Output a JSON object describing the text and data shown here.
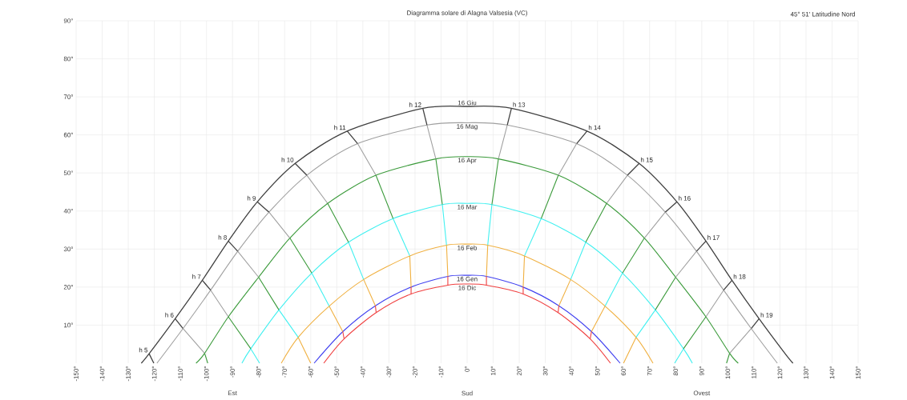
{
  "chart_data": {
    "type": "line",
    "title": "Diagramma solare di Alagna Valsesia (VC)",
    "xlim": [
      -150,
      150
    ],
    "ylim": [
      0,
      90
    ],
    "xticks": [
      {
        "value": -150,
        "label": "-150°"
      },
      {
        "value": -140,
        "label": "-140°"
      },
      {
        "value": -130,
        "label": "-130°"
      },
      {
        "value": -120,
        "label": "-120°"
      },
      {
        "value": -110,
        "label": "-110°"
      },
      {
        "value": -100,
        "label": "-100°"
      },
      {
        "value": -90,
        "label": "-90°"
      },
      {
        "value": -80,
        "label": "-80°"
      },
      {
        "value": -70,
        "label": "-70°"
      },
      {
        "value": -60,
        "label": "-60°"
      },
      {
        "value": -50,
        "label": "-50°"
      },
      {
        "value": -40,
        "label": "-40°"
      },
      {
        "value": -30,
        "label": "-30°"
      },
      {
        "value": -20,
        "label": "-20°"
      },
      {
        "value": -10,
        "label": "-10°"
      },
      {
        "value": 0,
        "label": "0°"
      },
      {
        "value": 10,
        "label": "10°"
      },
      {
        "value": 20,
        "label": "20°"
      },
      {
        "value": 30,
        "label": "30°"
      },
      {
        "value": 40,
        "label": "40°"
      },
      {
        "value": 50,
        "label": "50°"
      },
      {
        "value": 60,
        "label": "60°"
      },
      {
        "value": 70,
        "label": "70°"
      },
      {
        "value": 80,
        "label": "80°"
      },
      {
        "value": 90,
        "label": "90°"
      },
      {
        "value": 100,
        "label": "100°"
      },
      {
        "value": 110,
        "label": "110°"
      },
      {
        "value": 120,
        "label": "120°"
      },
      {
        "value": 130,
        "label": "130°"
      },
      {
        "value": 140,
        "label": "140°"
      },
      {
        "value": 150,
        "label": "150°"
      }
    ],
    "yticks": [
      {
        "value": 10,
        "label": "10°"
      },
      {
        "value": 20,
        "label": "20°"
      },
      {
        "value": 30,
        "label": "30°"
      },
      {
        "value": 40,
        "label": "40°"
      },
      {
        "value": 50,
        "label": "50°"
      },
      {
        "value": 60,
        "label": "60°"
      },
      {
        "value": 70,
        "label": "70°"
      },
      {
        "value": 80,
        "label": "80°"
      },
      {
        "value": 90,
        "label": "90°"
      }
    ],
    "grid": true,
    "marker": "none",
    "series": [
      {
        "name": "16 Giu",
        "color": "#404040",
        "x": [
          -125,
          -122,
          -112,
          -101.6,
          -91.6,
          -80.5,
          -66,
          -46,
          -17,
          0,
          17,
          46,
          66,
          80.5,
          91.6,
          101.6,
          112,
          122,
          125
        ],
        "values": [
          0,
          2.5,
          11.7,
          21.8,
          32.1,
          42.4,
          52.5,
          61,
          67,
          67.5,
          67,
          61,
          52.5,
          42.4,
          32.1,
          21.8,
          11.7,
          2.5,
          0
        ]
      },
      {
        "name": "16 Mag",
        "color": "#a0a0a0",
        "x": [
          -119,
          -109,
          -98.4,
          -88,
          -76,
          -61.5,
          -42,
          -15.4,
          0,
          15.4,
          42,
          61.5,
          76,
          88,
          98.4,
          109,
          119
        ],
        "values": [
          0,
          9.1,
          19.2,
          29.4,
          39.7,
          49.4,
          57.7,
          62.6,
          63.2,
          62.6,
          57.7,
          49.4,
          39.7,
          29.4,
          19.2,
          9.1,
          0
        ]
      },
      {
        "name": "16 Apr",
        "color": "#3a9a3a",
        "x": [
          -104,
          -100.7,
          -91.6,
          -80,
          -68,
          -53.5,
          -35,
          -12,
          0,
          12,
          35,
          53.5,
          68,
          80,
          91.6,
          100.7,
          104
        ],
        "values": [
          0,
          2.6,
          12.2,
          22.6,
          32.9,
          42,
          49.4,
          53.7,
          54.3,
          53.7,
          49.4,
          42,
          32.9,
          22.6,
          12.2,
          2.6,
          0
        ]
      },
      {
        "name": "16 Mar",
        "color": "#40f0f0",
        "x": [
          -86.4,
          -83,
          -72.2,
          -59.6,
          -45.5,
          -28.4,
          -9.5,
          0,
          9.5,
          28.4,
          45.5,
          59.6,
          72.2,
          83,
          86.4
        ],
        "values": [
          0,
          3.8,
          14,
          23.7,
          31.8,
          38,
          41.7,
          42,
          41.7,
          38,
          31.8,
          23.7,
          14,
          3.8,
          0
        ]
      },
      {
        "name": "16 Feb",
        "color": "#f0b040",
        "x": [
          -71.3,
          -64.8,
          -52.9,
          -39.7,
          -22,
          -7.9,
          0,
          7.9,
          22,
          39.7,
          52.9,
          64.8,
          71.3
        ],
        "values": [
          0,
          6.8,
          15,
          22,
          28.2,
          31,
          31.3,
          31,
          28.2,
          22,
          15,
          6.8,
          0
        ]
      },
      {
        "name": "16 Gen",
        "color": "#4040f0",
        "x": [
          -58.7,
          -47.7,
          -35.2,
          -21.5,
          -7.4,
          0,
          7.4,
          21.5,
          35.2,
          47.7,
          58.7
        ],
        "values": [
          0,
          8.3,
          15.1,
          20,
          22.8,
          23.1,
          22.8,
          20,
          15.1,
          8.3,
          0
        ]
      },
      {
        "name": "16 Dic",
        "color": "#f04040",
        "x": [
          -55,
          -47.2,
          -34.9,
          -21.5,
          -7.4,
          0,
          7.4,
          21.5,
          34.9,
          47.2,
          55
        ],
        "values": [
          0,
          6.4,
          13.3,
          18.2,
          20.5,
          20.8,
          20.5,
          18.2,
          13.3,
          6.4,
          0
        ]
      },
      {
        "color": "#404040",
        "x": [
          -122,
          -120.2,
          null,
          -112,
          -109,
          null,
          -101.6,
          -98.4,
          null,
          -91.6,
          -88,
          null,
          -80.5,
          -76,
          null,
          -66,
          -61.5,
          null,
          -46,
          -42,
          null,
          -17,
          -15.4,
          null,
          17,
          15.4,
          null,
          46,
          42,
          null,
          66,
          61.5,
          null,
          80.5,
          76,
          null,
          91.6,
          88,
          null,
          101.6,
          98.4,
          null,
          112,
          109
        ],
        "values": [
          2.5,
          0,
          null,
          11.7,
          9.1,
          null,
          21.8,
          19.2,
          null,
          32.1,
          29.4,
          null,
          42.4,
          39.7,
          null,
          52.5,
          49.4,
          null,
          61,
          57.7,
          null,
          67,
          62.6,
          null,
          67,
          62.6,
          null,
          61,
          57.7,
          null,
          52.5,
          49.4,
          null,
          42.4,
          39.7,
          null,
          32.1,
          29.4,
          null,
          21.8,
          19.2,
          null,
          11.7,
          9.1
        ]
      },
      {
        "color": "#a0a0a0",
        "x": [
          -109,
          -100.7,
          null,
          -98.4,
          -91.6,
          null,
          -88,
          -80,
          null,
          -76,
          -68,
          null,
          -61.5,
          -53.5,
          null,
          -42,
          -35,
          null,
          -15.4,
          -12,
          null,
          15.4,
          12,
          null,
          42,
          35,
          null,
          61.5,
          53.5,
          null,
          76,
          68,
          null,
          88,
          80,
          null,
          98.4,
          91.6,
          null,
          109,
          100.7
        ],
        "values": [
          9.1,
          2.6,
          null,
          19.2,
          12.2,
          null,
          29.4,
          22.6,
          null,
          39.7,
          32.9,
          null,
          49.4,
          42,
          null,
          57.7,
          49.4,
          null,
          62.6,
          53.7,
          null,
          62.6,
          53.7,
          null,
          57.7,
          49.4,
          null,
          49.4,
          42,
          null,
          39.7,
          32.9,
          null,
          29.4,
          22.6,
          null,
          19.2,
          12.2,
          null,
          9.1,
          2.6
        ]
      },
      {
        "color": "#3a9a3a",
        "x": [
          -100.7,
          -99.5,
          null,
          -91.6,
          -83,
          null,
          -80,
          -72.2,
          null,
          -68,
          -59.6,
          null,
          -53.5,
          -45.5,
          null,
          -35,
          -28.4,
          null,
          -12,
          -9.5,
          null,
          12,
          9.5,
          null,
          35,
          28.4,
          null,
          53.5,
          45.5,
          null,
          68,
          59.6,
          null,
          80,
          72.2,
          null,
          91.6,
          83,
          null,
          100.7,
          99.5
        ],
        "values": [
          2.6,
          0,
          null,
          12.2,
          3.8,
          null,
          22.6,
          14,
          null,
          32.9,
          23.7,
          null,
          42,
          31.8,
          null,
          49.4,
          38,
          null,
          53.7,
          41.7,
          null,
          53.7,
          41.7,
          null,
          49.4,
          38,
          null,
          42,
          31.8,
          null,
          32.9,
          23.7,
          null,
          22.6,
          14,
          null,
          12.2,
          3.8,
          null,
          2.6,
          0
        ]
      },
      {
        "color": "#40f0f0",
        "x": [
          -83,
          -79.6,
          null,
          -72.2,
          -64.8,
          null,
          -59.6,
          -52.9,
          null,
          -45.5,
          -39.7,
          null,
          -28.4,
          -22,
          null,
          -9.5,
          -7.9,
          null,
          9.5,
          7.9,
          null,
          28.4,
          22,
          null,
          45.5,
          39.7,
          null,
          59.6,
          52.9,
          null,
          72.2,
          64.8,
          null,
          83,
          79.6
        ],
        "values": [
          3.8,
          0,
          null,
          14,
          6.8,
          null,
          23.7,
          15,
          null,
          31.8,
          22,
          null,
          38,
          28.2,
          null,
          41.7,
          31,
          null,
          41.7,
          31,
          null,
          38,
          28.2,
          null,
          31.8,
          22,
          null,
          23.7,
          15,
          null,
          14,
          6.8,
          null,
          3.8,
          0
        ]
      },
      {
        "color": "#f0b040",
        "x": [
          -64.8,
          -60,
          null,
          -52.9,
          -47.7,
          null,
          -39.7,
          -35.2,
          null,
          -22,
          -21.5,
          null,
          -7.9,
          -7.4,
          null,
          7.9,
          7.4,
          null,
          22,
          21.5,
          null,
          39.7,
          35.2,
          null,
          52.9,
          47.7,
          null,
          64.8,
          60
        ],
        "values": [
          6.8,
          0,
          null,
          15,
          8.3,
          null,
          22,
          15.1,
          null,
          28.2,
          20,
          null,
          31,
          22.8,
          null,
          31,
          22.8,
          null,
          28.2,
          20,
          null,
          22,
          15.1,
          null,
          15,
          8.3,
          null,
          6.8,
          0
        ]
      },
      {
        "color": "#f04040",
        "x": [
          -47.7,
          -47.2,
          null,
          -35.2,
          -34.9,
          null,
          -21.5,
          -21.5,
          null,
          -7.4,
          -7.4,
          null,
          7.4,
          7.4,
          null,
          21.5,
          21.5,
          null,
          35.2,
          34.9,
          null,
          47.7,
          47.2
        ],
        "values": [
          8.3,
          6.4,
          null,
          15.1,
          13.3,
          null,
          20,
          18.2,
          null,
          22.8,
          20.5,
          null,
          22.8,
          20.5,
          null,
          20,
          18.2,
          null,
          15.1,
          13.3,
          null,
          8.3,
          6.4
        ]
      }
    ],
    "annotations": [
      "45° 51' Latitudine Nord",
      {
        "text": "h 5",
        "x": -122,
        "y": 2.5
      },
      {
        "text": "h 6",
        "x": -112,
        "y": 11.7
      },
      {
        "text": "h 7",
        "x": -101.6,
        "y": 21.8
      },
      {
        "text": "h 8",
        "x": -91.6,
        "y": 32.1
      },
      {
        "text": "h 9",
        "x": -80.5,
        "y": 42.4
      },
      {
        "text": "h 10",
        "x": -66,
        "y": 52.5
      },
      {
        "text": "h 11",
        "x": -46,
        "y": 61
      },
      {
        "text": "h 12",
        "x": -17,
        "y": 67
      },
      {
        "text": "h 13",
        "x": 17,
        "y": 67
      },
      {
        "text": "h 14",
        "x": 46,
        "y": 61
      },
      {
        "text": "h 15",
        "x": 66,
        "y": 52.5
      },
      {
        "text": "h 16",
        "x": 80.5,
        "y": 42.4
      },
      {
        "text": "h 17",
        "x": 91.6,
        "y": 32.1
      },
      {
        "text": "h 18",
        "x": 101.6,
        "y": 21.8
      },
      {
        "text": "h 19",
        "x": 112,
        "y": 11.7
      },
      "Est",
      "Sud",
      "Ovest"
    ]
  }
}
